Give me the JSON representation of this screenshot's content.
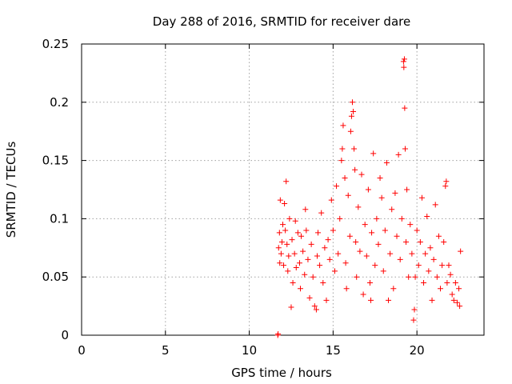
{
  "chart_data": {
    "type": "scatter",
    "title": "Day 288 of 2016, SRMTID for receiver dare",
    "xlabel": "GPS time / hours",
    "ylabel": "SRMTID / TECUs",
    "xlim": [
      0,
      24
    ],
    "ylim": [
      0,
      0.25
    ],
    "xticks": [
      0,
      5,
      10,
      15,
      20
    ],
    "xtick_labels": [
      "0",
      "5",
      "10",
      "15",
      "20"
    ],
    "yticks": [
      0,
      0.05,
      0.1,
      0.15,
      0.2,
      0.25
    ],
    "ytick_labels": [
      "0",
      "0.05",
      "0.1",
      "0.15",
      "0.2",
      "0.25"
    ],
    "grid": true,
    "marker": "+",
    "color": "#ff0000",
    "series": [
      {
        "name": "SRMTID",
        "points": [
          [
            11.7,
            0.0
          ],
          [
            11.72,
            0.001
          ],
          [
            11.75,
            0.075
          ],
          [
            11.8,
            0.088
          ],
          [
            11.82,
            0.062
          ],
          [
            11.85,
            0.116
          ],
          [
            11.9,
            0.07
          ],
          [
            11.95,
            0.08
          ],
          [
            12.0,
            0.095
          ],
          [
            12.05,
            0.06
          ],
          [
            12.1,
            0.113
          ],
          [
            12.15,
            0.09
          ],
          [
            12.2,
            0.132
          ],
          [
            12.25,
            0.078
          ],
          [
            12.3,
            0.055
          ],
          [
            12.35,
            0.068
          ],
          [
            12.4,
            0.1
          ],
          [
            12.5,
            0.024
          ],
          [
            12.55,
            0.082
          ],
          [
            12.6,
            0.045
          ],
          [
            12.7,
            0.07
          ],
          [
            12.75,
            0.098
          ],
          [
            12.8,
            0.058
          ],
          [
            12.9,
            0.088
          ],
          [
            13.0,
            0.062
          ],
          [
            13.05,
            0.04
          ],
          [
            13.1,
            0.085
          ],
          [
            13.2,
            0.072
          ],
          [
            13.3,
            0.052
          ],
          [
            13.35,
            0.108
          ],
          [
            13.4,
            0.09
          ],
          [
            13.5,
            0.065
          ],
          [
            13.6,
            0.032
          ],
          [
            13.7,
            0.078
          ],
          [
            13.8,
            0.05
          ],
          [
            13.9,
            0.025
          ],
          [
            14.0,
            0.022
          ],
          [
            14.05,
            0.068
          ],
          [
            14.1,
            0.088
          ],
          [
            14.2,
            0.06
          ],
          [
            14.3,
            0.105
          ],
          [
            14.4,
            0.045
          ],
          [
            14.5,
            0.075
          ],
          [
            14.6,
            0.03
          ],
          [
            14.7,
            0.082
          ],
          [
            14.8,
            0.065
          ],
          [
            14.9,
            0.116
          ],
          [
            15.0,
            0.09
          ],
          [
            15.1,
            0.055
          ],
          [
            15.2,
            0.128
          ],
          [
            15.3,
            0.07
          ],
          [
            15.4,
            0.1
          ],
          [
            15.5,
            0.15
          ],
          [
            15.55,
            0.16
          ],
          [
            15.6,
            0.18
          ],
          [
            15.7,
            0.135
          ],
          [
            15.75,
            0.062
          ],
          [
            15.8,
            0.04
          ],
          [
            15.9,
            0.12
          ],
          [
            16.0,
            0.085
          ],
          [
            16.05,
            0.175
          ],
          [
            16.1,
            0.188
          ],
          [
            16.15,
            0.2
          ],
          [
            16.2,
            0.192
          ],
          [
            16.25,
            0.16
          ],
          [
            16.3,
            0.142
          ],
          [
            16.35,
            0.08
          ],
          [
            16.4,
            0.05
          ],
          [
            16.5,
            0.11
          ],
          [
            16.6,
            0.072
          ],
          [
            16.7,
            0.138
          ],
          [
            16.8,
            0.035
          ],
          [
            16.9,
            0.095
          ],
          [
            17.0,
            0.068
          ],
          [
            17.1,
            0.125
          ],
          [
            17.2,
            0.045
          ],
          [
            17.25,
            0.03
          ],
          [
            17.3,
            0.088
          ],
          [
            17.4,
            0.156
          ],
          [
            17.5,
            0.06
          ],
          [
            17.6,
            0.1
          ],
          [
            17.7,
            0.078
          ],
          [
            17.8,
            0.135
          ],
          [
            17.9,
            0.118
          ],
          [
            18.0,
            0.055
          ],
          [
            18.1,
            0.09
          ],
          [
            18.2,
            0.148
          ],
          [
            18.3,
            0.03
          ],
          [
            18.4,
            0.07
          ],
          [
            18.5,
            0.108
          ],
          [
            18.6,
            0.04
          ],
          [
            18.7,
            0.122
          ],
          [
            18.8,
            0.085
          ],
          [
            18.9,
            0.155
          ],
          [
            19.0,
            0.065
          ],
          [
            19.1,
            0.1
          ],
          [
            19.2,
            0.235
          ],
          [
            19.22,
            0.23
          ],
          [
            19.25,
            0.237
          ],
          [
            19.27,
            0.195
          ],
          [
            19.3,
            0.16
          ],
          [
            19.35,
            0.08
          ],
          [
            19.4,
            0.125
          ],
          [
            19.5,
            0.05
          ],
          [
            19.6,
            0.095
          ],
          [
            19.7,
            0.07
          ],
          [
            19.8,
            0.013
          ],
          [
            19.85,
            0.022
          ],
          [
            19.9,
            0.05
          ],
          [
            20.0,
            0.09
          ],
          [
            20.1,
            0.06
          ],
          [
            20.2,
            0.08
          ],
          [
            20.3,
            0.118
          ],
          [
            20.4,
            0.045
          ],
          [
            20.5,
            0.07
          ],
          [
            20.6,
            0.102
          ],
          [
            20.7,
            0.055
          ],
          [
            20.8,
            0.075
          ],
          [
            20.9,
            0.03
          ],
          [
            21.0,
            0.065
          ],
          [
            21.1,
            0.112
          ],
          [
            21.2,
            0.05
          ],
          [
            21.3,
            0.085
          ],
          [
            21.4,
            0.04
          ],
          [
            21.5,
            0.06
          ],
          [
            21.6,
            0.08
          ],
          [
            21.7,
            0.128
          ],
          [
            21.75,
            0.132
          ],
          [
            21.8,
            0.045
          ],
          [
            21.9,
            0.06
          ],
          [
            22.0,
            0.052
          ],
          [
            22.1,
            0.035
          ],
          [
            22.2,
            0.03
          ],
          [
            22.3,
            0.045
          ],
          [
            22.4,
            0.028
          ],
          [
            22.5,
            0.04
          ],
          [
            22.55,
            0.025
          ],
          [
            22.6,
            0.072
          ]
        ]
      }
    ]
  }
}
